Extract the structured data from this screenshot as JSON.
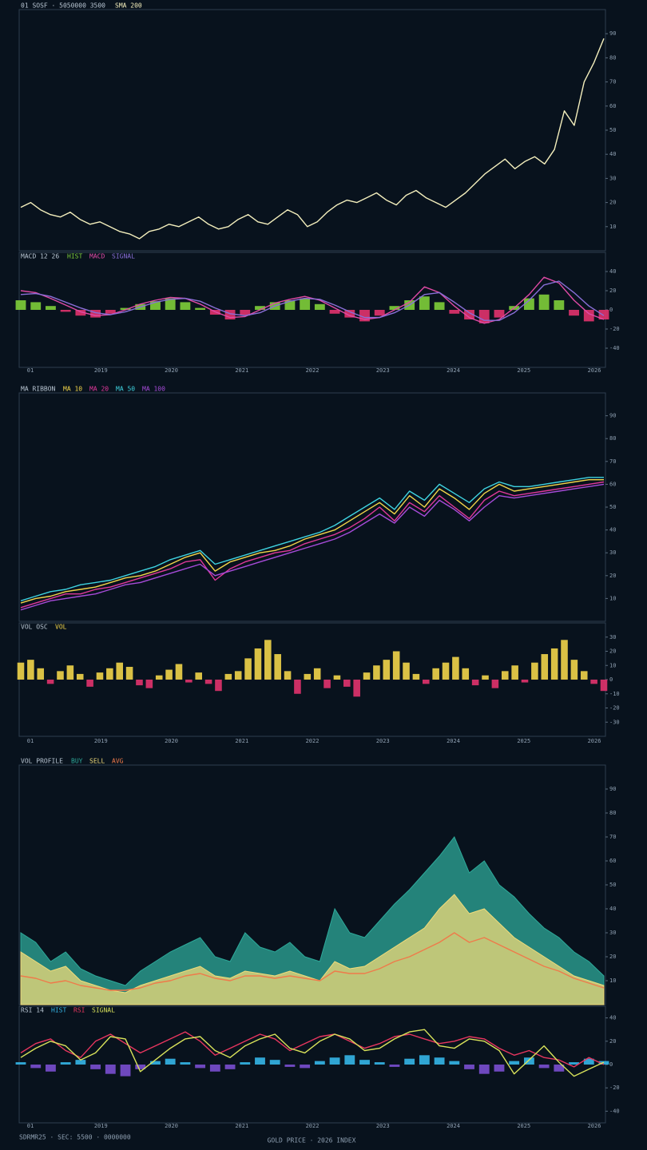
{
  "chart_data": [
    {
      "type": "line",
      "title": "01 SOSF · 5050000 3500",
      "ylim": [
        0,
        100
      ],
      "yticks": [
        10,
        20,
        30,
        40,
        50,
        60,
        70,
        80,
        90
      ],
      "series": [
        {
          "name": "SMA 200",
          "color": "#f4efbd",
          "style": "line",
          "values": [
            18,
            20,
            17,
            15,
            14,
            16,
            13,
            11,
            12,
            10,
            8,
            7,
            5,
            8,
            9,
            11,
            10,
            12,
            14,
            11,
            9,
            10,
            13,
            15,
            12,
            11,
            14,
            17,
            15,
            10,
            12,
            16,
            19,
            21,
            20,
            22,
            24,
            21,
            19,
            23,
            25,
            22,
            20,
            18,
            21,
            24,
            28,
            32,
            35,
            38,
            34,
            37,
            39,
            36,
            42,
            58,
            52,
            70,
            78,
            88
          ]
        }
      ]
    },
    {
      "type": "line",
      "title": "MACD 12 26",
      "ylim": [
        -60,
        60
      ],
      "yticks": [
        -40,
        -20,
        0,
        20,
        40
      ],
      "xlabels": [
        "01",
        "2019",
        "2020",
        "2021",
        "2022",
        "2023",
        "2024",
        "2025",
        "2026"
      ],
      "series": [
        {
          "name": "HIST",
          "color": "#7fcf3a",
          "negative_color": "#e2336e",
          "style": "bar",
          "values": [
            10,
            8,
            4,
            -2,
            -6,
            -8,
            -4,
            2,
            6,
            9,
            12,
            8,
            2,
            -5,
            -10,
            -6,
            4,
            8,
            10,
            12,
            6,
            -4,
            -8,
            -12,
            -6,
            4,
            10,
            14,
            8,
            -4,
            -10,
            -14,
            -8,
            4,
            12,
            16,
            10,
            -6,
            -12,
            -10
          ]
        },
        {
          "name": "MACD",
          "color": "#e04aa6",
          "style": "line",
          "values": [
            20,
            18,
            12,
            5,
            -2,
            -6,
            -5,
            0,
            6,
            10,
            13,
            12,
            6,
            -2,
            -8,
            -7,
            0,
            7,
            11,
            14,
            10,
            2,
            -6,
            -10,
            -8,
            0,
            8,
            24,
            18,
            4,
            -8,
            -14,
            -10,
            2,
            16,
            34,
            28,
            10,
            -4,
            -10
          ]
        },
        {
          "name": "SIGNAL",
          "color": "#8a6fd8",
          "style": "line",
          "values": [
            16,
            17,
            14,
            8,
            2,
            -3,
            -5,
            -2,
            3,
            8,
            11,
            12,
            9,
            2,
            -4,
            -6,
            -3,
            4,
            9,
            12,
            11,
            5,
            -2,
            -8,
            -8,
            -3,
            5,
            16,
            18,
            8,
            -3,
            -11,
            -11,
            -3,
            10,
            26,
            30,
            18,
            4,
            -6
          ]
        }
      ]
    },
    {
      "type": "line",
      "title": "MA RIBBON",
      "ylim": [
        0,
        100
      ],
      "yticks": [
        10,
        20,
        30,
        40,
        50,
        60,
        70,
        80,
        90
      ],
      "series": [
        {
          "name": "MA 10",
          "color": "#f2d54a",
          "style": "line",
          "values": [
            8,
            10,
            11,
            13,
            14,
            15,
            17,
            19,
            20,
            22,
            25,
            28,
            30,
            22,
            26,
            28,
            30,
            31,
            33,
            36,
            38,
            40,
            44,
            48,
            52,
            47,
            55,
            50,
            58,
            54,
            49,
            56,
            60,
            57,
            58,
            59,
            60,
            61,
            62,
            62
          ]
        },
        {
          "name": "MA 20",
          "color": "#e0389a",
          "style": "line",
          "values": [
            6,
            8,
            10,
            12,
            12,
            14,
            15,
            17,
            19,
            21,
            23,
            26,
            27,
            18,
            23,
            26,
            28,
            30,
            31,
            34,
            36,
            38,
            41,
            45,
            50,
            44,
            52,
            48,
            55,
            50,
            45,
            53,
            57,
            55,
            56,
            57,
            58,
            59,
            60,
            61
          ]
        },
        {
          "name": "MA 50",
          "color": "#3fd3e0",
          "style": "line",
          "values": [
            9,
            11,
            13,
            14,
            16,
            17,
            18,
            20,
            22,
            24,
            27,
            29,
            31,
            25,
            27,
            29,
            31,
            33,
            35,
            37,
            39,
            42,
            46,
            50,
            54,
            49,
            57,
            53,
            60,
            56,
            52,
            58,
            61,
            59,
            59,
            60,
            61,
            62,
            63,
            63
          ]
        },
        {
          "name": "MA 100",
          "color": "#a64bd8",
          "style": "line",
          "values": [
            5,
            7,
            9,
            10,
            11,
            12,
            14,
            16,
            17,
            19,
            21,
            23,
            25,
            20,
            22,
            24,
            26,
            28,
            30,
            32,
            34,
            36,
            39,
            43,
            47,
            43,
            50,
            46,
            53,
            49,
            44,
            50,
            55,
            54,
            55,
            56,
            57,
            58,
            59,
            60
          ]
        }
      ]
    },
    {
      "type": "bar",
      "title": "VOL OSC",
      "ylim": [
        -40,
        40
      ],
      "yticks": [
        -30,
        -20,
        -10,
        0,
        10,
        20,
        30
      ],
      "xlabels": [
        "01",
        "2019",
        "2020",
        "2021",
        "2022",
        "2023",
        "2024",
        "2025",
        "2026"
      ],
      "series": [
        {
          "name": "VOL",
          "color": "#f2d54a",
          "negative_color": "#e2336e",
          "style": "bar",
          "values": [
            12,
            14,
            8,
            -3,
            6,
            10,
            4,
            -5,
            5,
            8,
            12,
            9,
            -4,
            -6,
            3,
            7,
            11,
            -2,
            5,
            -3,
            -8,
            4,
            6,
            15,
            22,
            28,
            18,
            6,
            -10,
            4,
            8,
            -6,
            3,
            -5,
            -12,
            5,
            10,
            14,
            20,
            12,
            4,
            -3,
            8,
            12,
            16,
            8,
            -4,
            3,
            -6,
            6,
            10,
            -2,
            12,
            18,
            22,
            28,
            14,
            6,
            -3,
            -8
          ]
        }
      ]
    },
    {
      "type": "area",
      "title": "VOL PROFILE",
      "ylim": [
        0,
        100
      ],
      "yticks": [
        10,
        20,
        30,
        40,
        50,
        60,
        70,
        80,
        90
      ],
      "series": [
        {
          "name": "BUY",
          "color": "#2ea99a",
          "style": "area",
          "values": [
            30,
            26,
            18,
            22,
            15,
            12,
            10,
            8,
            14,
            18,
            22,
            25,
            28,
            20,
            18,
            30,
            24,
            22,
            26,
            20,
            18,
            40,
            30,
            28,
            35,
            42,
            48,
            55,
            62,
            70,
            55,
            60,
            50,
            45,
            38,
            32,
            28,
            22,
            18,
            12
          ]
        },
        {
          "name": "SELL",
          "color": "#f1dc7a",
          "style": "area",
          "values": [
            22,
            18,
            14,
            16,
            10,
            8,
            6,
            5,
            8,
            10,
            12,
            14,
            16,
            12,
            11,
            14,
            13,
            12,
            14,
            12,
            10,
            18,
            15,
            16,
            20,
            24,
            28,
            32,
            40,
            46,
            38,
            40,
            34,
            28,
            24,
            20,
            16,
            12,
            10,
            8
          ]
        },
        {
          "name": "AVG",
          "color": "#ef7a4a",
          "style": "line",
          "values": [
            12,
            11,
            9,
            10,
            8,
            7,
            6,
            6,
            7,
            9,
            10,
            12,
            13,
            11,
            10,
            12,
            12,
            11,
            12,
            11,
            10,
            14,
            13,
            13,
            15,
            18,
            20,
            23,
            26,
            30,
            26,
            28,
            25,
            22,
            19,
            16,
            14,
            11,
            9,
            7
          ]
        }
      ]
    },
    {
      "type": "line",
      "title": "RSI 14",
      "ylim": [
        -50,
        50
      ],
      "yticks": [
        -40,
        -20,
        0,
        20,
        40
      ],
      "xlabels": [
        "01",
        "2019",
        "2020",
        "2021",
        "2022",
        "2023",
        "2024",
        "2025",
        "2026"
      ],
      "series": [
        {
          "name": "HIST",
          "color": "#35b6e8",
          "negative_color": "#7a4fd0",
          "style": "bar",
          "values": [
            2,
            -3,
            -6,
            2,
            4,
            -4,
            -8,
            -10,
            -4,
            3,
            5,
            2,
            -3,
            -6,
            -4,
            2,
            6,
            4,
            -2,
            -3,
            3,
            6,
            8,
            4,
            2,
            -2,
            5,
            8,
            6,
            3,
            -4,
            -8,
            -6,
            3,
            6,
            -3,
            -6,
            2,
            5,
            3
          ]
        },
        {
          "name": "RSI",
          "color": "#e8365f",
          "style": "line",
          "values": [
            10,
            18,
            22,
            12,
            6,
            20,
            26,
            18,
            10,
            16,
            22,
            28,
            20,
            8,
            14,
            20,
            26,
            22,
            12,
            18,
            24,
            26,
            20,
            14,
            18,
            24,
            26,
            22,
            18,
            20,
            24,
            22,
            14,
            8,
            12,
            6,
            4,
            -2,
            6,
            0
          ]
        },
        {
          "name": "SIGNAL",
          "color": "#d8e25a",
          "style": "line",
          "values": [
            6,
            14,
            20,
            16,
            4,
            10,
            24,
            22,
            -6,
            4,
            14,
            22,
            24,
            12,
            6,
            16,
            22,
            26,
            14,
            10,
            20,
            26,
            22,
            12,
            14,
            22,
            28,
            30,
            16,
            14,
            22,
            20,
            12,
            -8,
            4,
            16,
            2,
            -10,
            -4,
            2
          ]
        }
      ]
    }
  ],
  "footer": "SDRMR25 · SEC: 5500 · 0000000",
  "footer_center": "GOLD PRICE · 2026 INDEX"
}
